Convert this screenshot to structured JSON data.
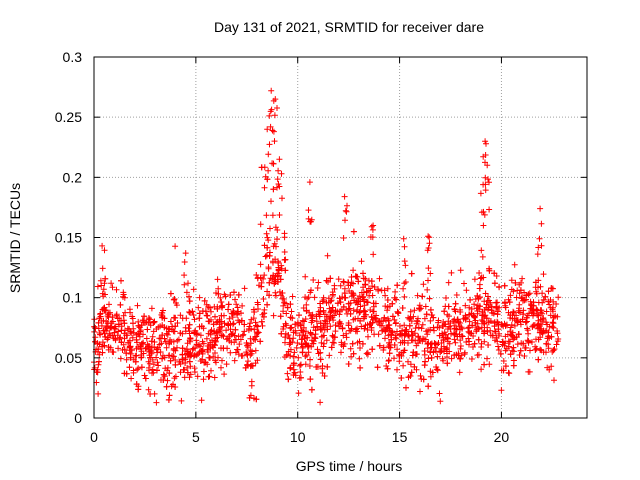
{
  "chart_data": {
    "type": "scatter",
    "title": "Day 131 of 2021, SRMTID for receiver dare",
    "xlabel": "GPS time / hours",
    "ylabel": "SRMTID / TECUs",
    "xlim": [
      0,
      24.2
    ],
    "ylim": [
      0,
      0.3
    ],
    "x_ticks": [
      0,
      5,
      10,
      15,
      20
    ],
    "x_tick_labels": [
      "0",
      "5",
      "10",
      "15",
      "20"
    ],
    "y_ticks": [
      0,
      0.05,
      0.1,
      0.15,
      0.2,
      0.25,
      0.3
    ],
    "y_tick_labels": [
      "0",
      "0.05",
      "0.1",
      "0.15",
      "0.2",
      "0.25",
      "0.3"
    ],
    "grid": true,
    "marker": "+",
    "series": [
      {
        "name": "SRMTID",
        "color": "#ff0000",
        "x_range": [
          0,
          22.8
        ],
        "n_points": 2400,
        "baseline": [
          [
            0.0,
            0.058
          ],
          [
            0.5,
            0.075
          ],
          [
            1.0,
            0.08
          ],
          [
            1.5,
            0.07
          ],
          [
            2.0,
            0.062
          ],
          [
            2.5,
            0.058
          ],
          [
            3.0,
            0.055
          ],
          [
            3.5,
            0.055
          ],
          [
            4.0,
            0.056
          ],
          [
            4.5,
            0.058
          ],
          [
            5.0,
            0.062
          ],
          [
            5.5,
            0.066
          ],
          [
            6.0,
            0.072
          ],
          [
            6.5,
            0.076
          ],
          [
            7.0,
            0.078
          ],
          [
            7.5,
            0.062
          ],
          [
            7.8,
            0.048
          ],
          [
            8.0,
            0.075
          ],
          [
            8.3,
            0.1
          ],
          [
            8.6,
            0.125
          ],
          [
            9.0,
            0.13
          ],
          [
            9.3,
            0.085
          ],
          [
            9.6,
            0.06
          ],
          [
            10.0,
            0.062
          ],
          [
            10.5,
            0.07
          ],
          [
            11.0,
            0.072
          ],
          [
            11.5,
            0.08
          ],
          [
            12.0,
            0.085
          ],
          [
            12.5,
            0.088
          ],
          [
            13.0,
            0.09
          ],
          [
            13.5,
            0.09
          ],
          [
            14.0,
            0.085
          ],
          [
            14.5,
            0.075
          ],
          [
            15.0,
            0.07
          ],
          [
            15.5,
            0.068
          ],
          [
            16.0,
            0.066
          ],
          [
            16.5,
            0.065
          ],
          [
            17.0,
            0.068
          ],
          [
            17.5,
            0.072
          ],
          [
            18.0,
            0.075
          ],
          [
            18.5,
            0.078
          ],
          [
            19.0,
            0.085
          ],
          [
            19.5,
            0.082
          ],
          [
            20.0,
            0.07
          ],
          [
            20.5,
            0.075
          ],
          [
            21.0,
            0.082
          ],
          [
            21.5,
            0.085
          ],
          [
            22.0,
            0.082
          ],
          [
            22.5,
            0.075
          ],
          [
            22.8,
            0.07
          ]
        ],
        "spread": 0.022,
        "peaks": [
          {
            "x": 8.7,
            "y": 0.272
          },
          {
            "x": 8.9,
            "y": 0.265
          },
          {
            "x": 9.1,
            "y": 0.215
          },
          {
            "x": 8.5,
            "y": 0.24
          },
          {
            "x": 10.6,
            "y": 0.196
          },
          {
            "x": 12.3,
            "y": 0.184
          },
          {
            "x": 19.2,
            "y": 0.23
          },
          {
            "x": 19.3,
            "y": 0.21
          },
          {
            "x": 19.1,
            "y": 0.194
          },
          {
            "x": 21.9,
            "y": 0.174
          },
          {
            "x": 0.4,
            "y": 0.143
          },
          {
            "x": 4.5,
            "y": 0.137
          },
          {
            "x": 16.4,
            "y": 0.151
          },
          {
            "x": 15.2,
            "y": 0.149
          },
          {
            "x": 13.7,
            "y": 0.16
          }
        ],
        "lows": [
          {
            "x": 11.1,
            "y": 0.013
          },
          {
            "x": 17.0,
            "y": 0.014
          },
          {
            "x": 0.2,
            "y": 0.02
          },
          {
            "x": 16.0,
            "y": 0.022
          },
          {
            "x": 20.0,
            "y": 0.023
          }
        ]
      }
    ]
  }
}
